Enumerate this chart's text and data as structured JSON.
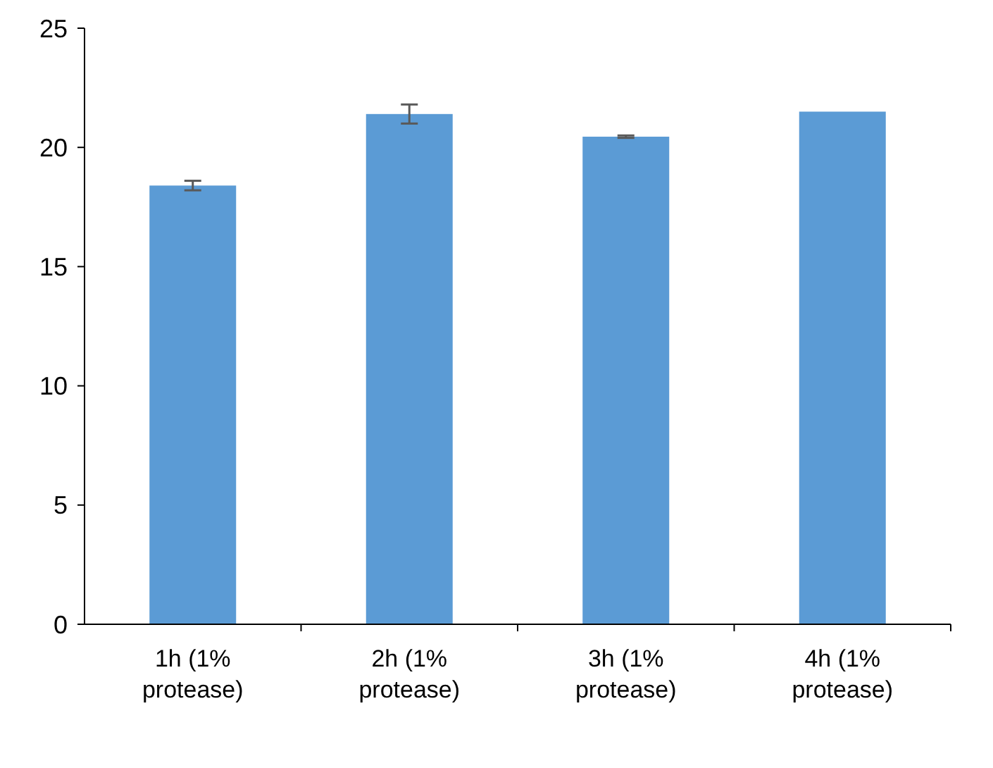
{
  "chart_data": {
    "type": "bar",
    "categories": [
      "1h (1% protease)",
      "2h (1% protease)",
      "3h (1% protease)",
      "4h (1% protease)"
    ],
    "values": [
      18.4,
      21.4,
      20.45,
      21.5
    ],
    "errors": [
      0.2,
      0.4,
      0.05,
      null
    ],
    "color": "#5b9bd5",
    "ylim": [
      0,
      25
    ],
    "yticks": [
      0,
      5,
      10,
      15,
      20,
      25
    ],
    "grid": false
  }
}
